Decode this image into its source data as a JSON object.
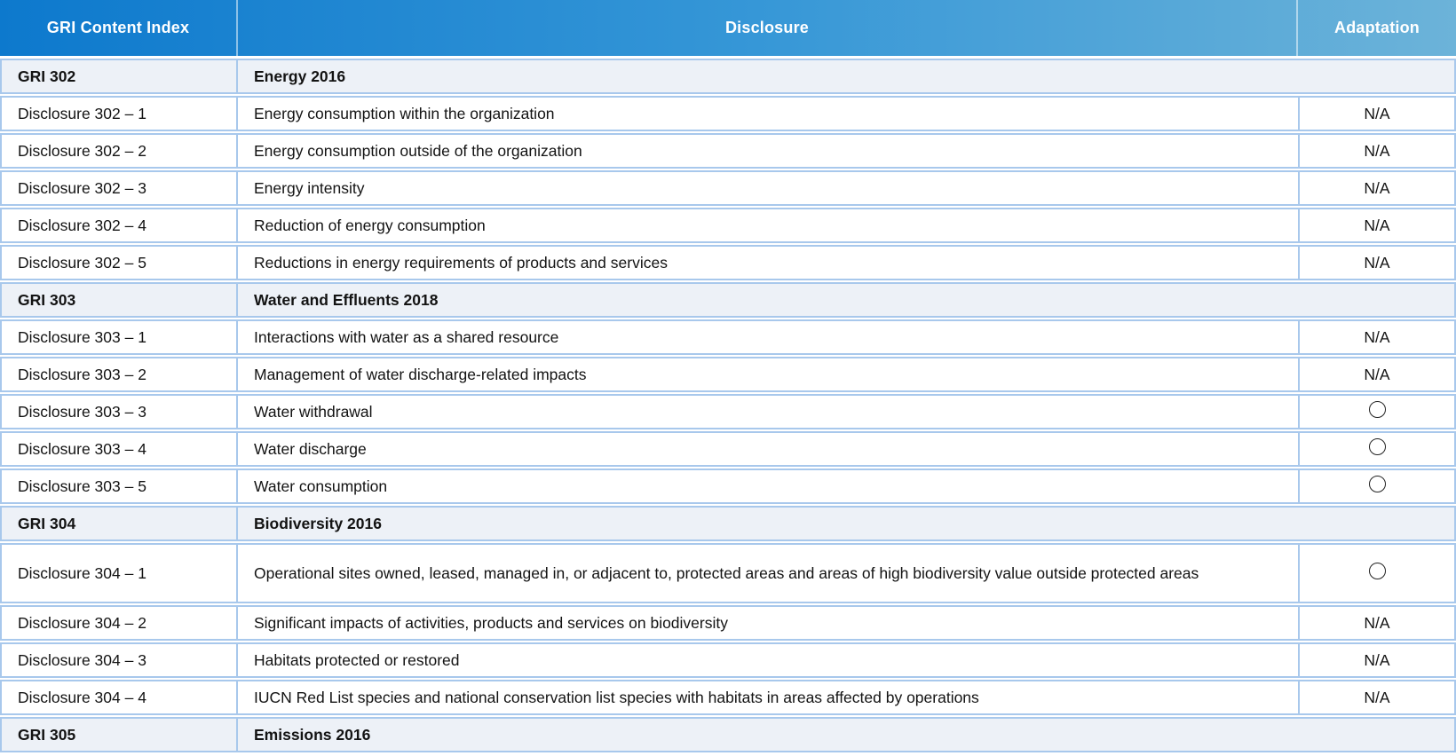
{
  "header": {
    "col1": "GRI Content Index",
    "col2": "Disclosure",
    "col3": "Adaptation"
  },
  "colors": {
    "header_gradient_left": "#0d79cd",
    "header_gradient_mid": "#3697d7",
    "header_gradient_right": "#6cb3d9",
    "row_border": "#a8c8ec",
    "section_row_background": "#edf1f7",
    "header_text": "#ffffff",
    "body_text": "#131313"
  },
  "icons": {
    "adaptation_circle": "circle-outline"
  },
  "table": {
    "rows": [
      {
        "type": "section",
        "id": "GRI 302",
        "title": "Energy 2016"
      },
      {
        "type": "item",
        "id": "Disclosure 302 – 1",
        "disclosure": "Energy consumption within the organization",
        "adaptation": "N/A"
      },
      {
        "type": "item",
        "id": "Disclosure 302 – 2",
        "disclosure": "Energy consumption outside of the organization",
        "adaptation": "N/A"
      },
      {
        "type": "item",
        "id": "Disclosure 302 – 3",
        "disclosure": "Energy intensity",
        "adaptation": "N/A"
      },
      {
        "type": "item",
        "id": "Disclosure 302 – 4",
        "disclosure": "Reduction of energy consumption",
        "adaptation": "N/A"
      },
      {
        "type": "item",
        "id": "Disclosure 302 – 5",
        "disclosure": "Reductions in energy requirements of products and services",
        "adaptation": "N/A"
      },
      {
        "type": "section",
        "id": "GRI 303",
        "title": "Water and Effluents 2018"
      },
      {
        "type": "item",
        "id": "Disclosure 303 – 1",
        "disclosure": "Interactions with water as a shared resource",
        "adaptation": "N/A"
      },
      {
        "type": "item",
        "id": "Disclosure 303 – 2",
        "disclosure": "Management of water discharge-related impacts",
        "adaptation": "N/A"
      },
      {
        "type": "item",
        "id": "Disclosure 303 – 3",
        "disclosure": "Water withdrawal",
        "adaptation": "circle"
      },
      {
        "type": "item",
        "id": "Disclosure 303 – 4",
        "disclosure": "Water discharge",
        "adaptation": "circle"
      },
      {
        "type": "item",
        "id": "Disclosure 303 – 5",
        "disclosure": "Water consumption",
        "adaptation": "circle"
      },
      {
        "type": "section",
        "id": "GRI 304",
        "title": "Biodiversity 2016"
      },
      {
        "type": "item",
        "tall": true,
        "id": "Disclosure 304 – 1",
        "disclosure": "Operational sites owned, leased, managed in, or adjacent to, protected areas and areas of high biodiversity value outside protected areas",
        "adaptation": "circle"
      },
      {
        "type": "item",
        "id": "Disclosure 304 – 2",
        "disclosure": "Significant impacts of activities, products and services on biodiversity",
        "adaptation": "N/A"
      },
      {
        "type": "item",
        "id": "Disclosure 304 – 3",
        "disclosure": "Habitats protected or restored",
        "adaptation": "N/A"
      },
      {
        "type": "item",
        "id": "Disclosure 304 – 4",
        "disclosure": "IUCN Red List species and national conservation list species with habitats in areas affected by operations",
        "adaptation": "N/A"
      },
      {
        "type": "section",
        "id": "GRI 305",
        "title": "Emissions 2016"
      }
    ]
  }
}
